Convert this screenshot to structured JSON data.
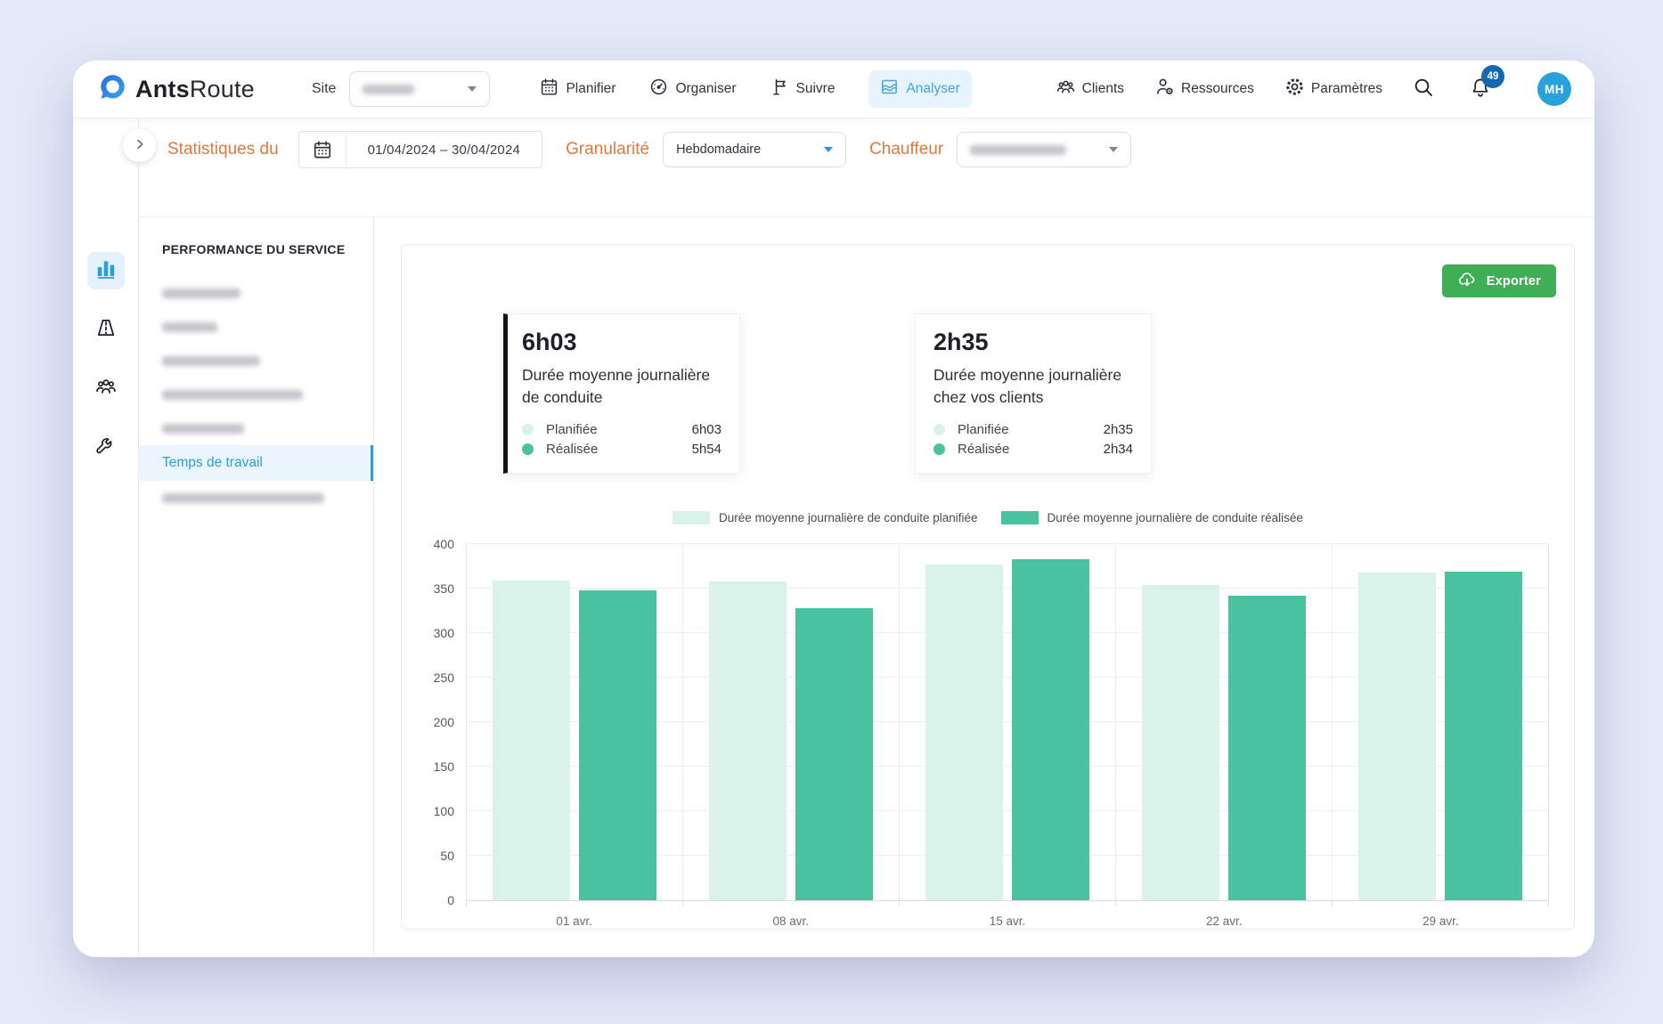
{
  "brand": {
    "bold": "Ants",
    "light": "Route"
  },
  "header": {
    "site_label": "Site",
    "tabs": [
      {
        "label": "Planifier",
        "icon": "calendar-icon",
        "active": false
      },
      {
        "label": "Organiser",
        "icon": "speedometer-icon",
        "active": false
      },
      {
        "label": "Suivre",
        "icon": "signpost-icon",
        "active": false
      },
      {
        "label": "Analyser",
        "icon": "area-chart-icon",
        "active": true
      }
    ],
    "nav": [
      {
        "label": "Clients",
        "icon": "people-icon"
      },
      {
        "label": "Ressources",
        "icon": "person-gear-icon"
      },
      {
        "label": "Paramètres",
        "icon": "gear-icon"
      }
    ],
    "notification_count": "49",
    "avatar_initials": "MH"
  },
  "filters": {
    "title": "Statistiques du",
    "date_range": "01/04/2024 – 30/04/2024",
    "granularity_label": "Granularité",
    "granularity_value": "Hebdomadaire",
    "driver_label": "Chauffeur"
  },
  "sidebar": {
    "heading": "PERFORMANCE DU SERVICE",
    "active_item": "Temps de travail"
  },
  "panel": {
    "export_label": "Exporter",
    "cards": [
      {
        "value": "6h03",
        "title": "Durée moyenne journalière de conduite",
        "selected": true,
        "rows": [
          {
            "label": "Planifiée",
            "value": "6h03"
          },
          {
            "label": "Réalisée",
            "value": "5h54"
          }
        ]
      },
      {
        "value": "2h35",
        "title": "Durée moyenne journalière chez vos clients",
        "selected": false,
        "rows": [
          {
            "label": "Planifiée",
            "value": "2h35"
          },
          {
            "label": "Réalisée",
            "value": "2h34"
          }
        ]
      }
    ]
  },
  "chart_data": {
    "type": "bar",
    "categories": [
      "01 avr.",
      "08 avr.",
      "15 avr.",
      "22 avr.",
      "29 avr."
    ],
    "series": [
      {
        "name": "Durée moyenne journalière de conduite planifiée",
        "color": "#d9f3ea",
        "values": [
          359,
          358,
          377,
          354,
          368
        ]
      },
      {
        "name": "Durée moyenne journalière de conduite réalisée",
        "color": "#4ac2a0",
        "values": [
          348,
          328,
          383,
          342,
          369
        ]
      }
    ],
    "ylim": [
      0,
      400
    ],
    "ytick_step": 50,
    "grid": true,
    "legend_position": "top"
  },
  "colors": {
    "accent_orange": "#dd7a3f",
    "active_blue": "#4aa3df",
    "sidebar_active_blue": "#2e9ddb",
    "export_green": "#3fae54",
    "bar_planned": "#d9f3ea",
    "bar_realised": "#4ac2a0",
    "badge_blue": "#1668b1",
    "avatar_blue": "#29a2db",
    "page_background": "#e4e9f8"
  }
}
